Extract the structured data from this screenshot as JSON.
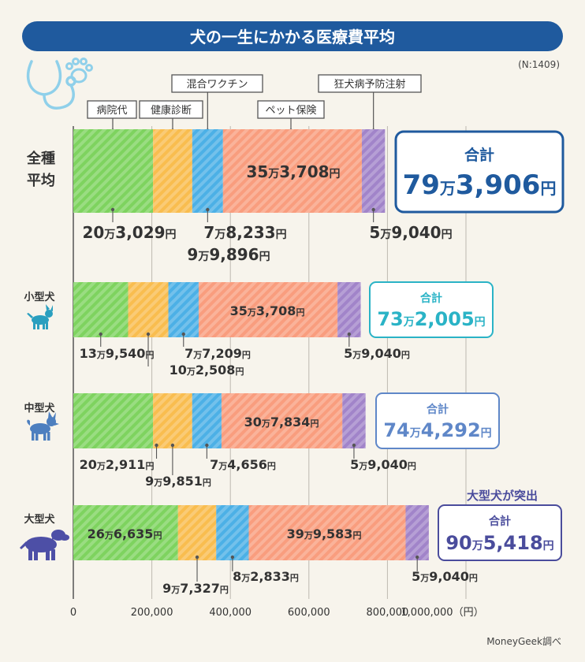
{
  "title": "犬の一生にかかる医療費平均",
  "sample_note": "(N:1409)",
  "source": "MoneyGeek調べ",
  "highlight_note": "大型犬が突出",
  "total_label": "合計",
  "category_labels": {
    "hospital": "病院代",
    "checkup": "健康診断",
    "vaccine": "混合ワクチン",
    "insurance": "ペット保険",
    "rabies": "狂犬病予防注射"
  },
  "rows": [
    {
      "label": "全種\n平均",
      "total_text": "79万3,906円",
      "segment_labels": [
        "20万3,029円",
        "9万9,896円",
        "7万8,233円",
        "35万3,708円",
        "5万9,040円"
      ]
    },
    {
      "label": "小型犬",
      "icon": "small-dog-icon",
      "total_text": "73万2,005円",
      "segment_labels": [
        "13万9,540円",
        "10万2,508円",
        "7万7,209円",
        "35万3,708円",
        "5万9,040円"
      ]
    },
    {
      "label": "中型犬",
      "icon": "medium-dog-icon",
      "total_text": "74万4,292円",
      "segment_labels": [
        "20万2,911円",
        "9万9,851円",
        "7万4,656円",
        "30万7,834円",
        "5万9,040円"
      ]
    },
    {
      "label": "大型犬",
      "icon": "large-dog-icon",
      "total_text": "90万5,418円",
      "segment_labels": [
        "26万6,635円",
        "9万7,327円",
        "8万2,833円",
        "39万9,583円",
        "5万9,040円"
      ]
    }
  ],
  "colors": {
    "banner": "#1f5a9e",
    "hospital": "#7ed35f",
    "checkup": "#f9bd4f",
    "vaccine": "#4cb0e6",
    "insurance": "#f99d7e",
    "rabies": "#a184c9",
    "total_all": "#1f5a9e",
    "total_small": "#2ab3c6",
    "total_medium": "#5f87c8",
    "total_large": "#4a4c9c",
    "icon_small": "#2a9fbf",
    "icon_medium": "#4d7fbf",
    "icon_large": "#4d4fa6",
    "stethoscope": "#8fd0ea"
  },
  "chart_data": {
    "type": "bar",
    "orientation": "horizontal",
    "stacked": true,
    "unit": "円",
    "categories": [
      "全種平均",
      "小型犬",
      "中型犬",
      "大型犬"
    ],
    "series": [
      {
        "name": "病院代",
        "values": [
          203029,
          139540,
          202911,
          266635
        ]
      },
      {
        "name": "健康診断",
        "values": [
          99896,
          102508,
          99851,
          97327
        ]
      },
      {
        "name": "混合ワクチン",
        "values": [
          78233,
          77209,
          74656,
          82833
        ]
      },
      {
        "name": "ペット保険",
        "values": [
          353708,
          353708,
          307834,
          399583
        ]
      },
      {
        "name": "狂犬病予防注射",
        "values": [
          59040,
          59040,
          59040,
          59040
        ]
      }
    ],
    "totals": [
      793906,
      732005,
      744292,
      905418
    ],
    "xlim": [
      0,
      1000000
    ],
    "x_ticks": [
      "0",
      "200,000",
      "400,000",
      "600,000",
      "800,000",
      "1,000,000（円）"
    ],
    "grid": true,
    "legend": "callouts above top bar"
  }
}
